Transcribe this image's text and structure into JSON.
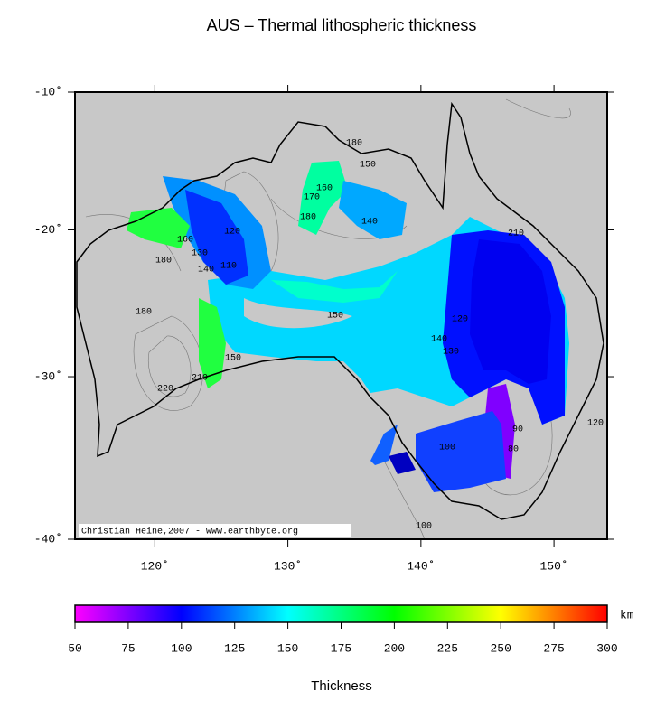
{
  "title": "AUS – Thermal lithospheric thickness",
  "map": {
    "lonlim": [
      114,
      154
    ],
    "latlim": [
      -40,
      -10
    ],
    "lon_ticks": [
      {
        "value": 120,
        "label": "120˚"
      },
      {
        "value": 130,
        "label": "130˚"
      },
      {
        "value": 140,
        "label": "140˚"
      },
      {
        "value": 150,
        "label": "150˚"
      }
    ],
    "lat_ticks": [
      {
        "value": -10,
        "label": "-10˚"
      },
      {
        "value": -20,
        "label": "-20˚"
      },
      {
        "value": -30,
        "label": "-30˚"
      },
      {
        "value": -40,
        "label": "-40˚"
      }
    ],
    "credit": "Christian Heine,2007 - www.earthbyte.org",
    "contour_labels": [
      "180",
      "150",
      "170",
      "160",
      "180",
      "140",
      "120",
      "160",
      "130",
      "140",
      "110",
      "180",
      "180",
      "150",
      "120",
      "140",
      "130",
      "150",
      "220",
      "210",
      "210",
      "120",
      "90",
      "80",
      "100",
      "100"
    ]
  },
  "colorbar": {
    "range": [
      50,
      300
    ],
    "ticks": [
      50,
      75,
      100,
      125,
      150,
      175,
      200,
      225,
      250,
      275,
      300
    ],
    "unit": "km",
    "label": "Thickness"
  }
}
